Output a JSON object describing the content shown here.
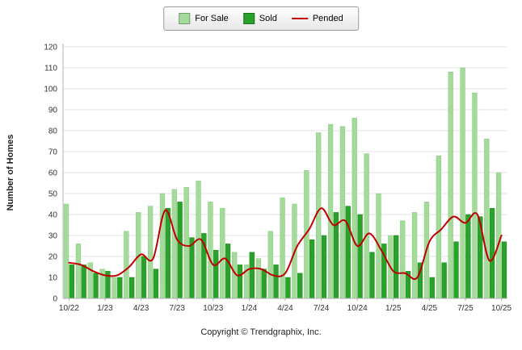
{
  "legend": {
    "items": [
      {
        "label": "For Sale",
        "color": "#a4db9b",
        "marker": "square"
      },
      {
        "label": "Sold",
        "color": "#28a228",
        "marker": "square"
      },
      {
        "label": "Pended",
        "color": "#c00000",
        "marker": "line"
      }
    ]
  },
  "footer": {
    "copyright": "Copyright © Trendgraphix, Inc."
  },
  "chart_data": {
    "type": "bar",
    "title": "",
    "xlabel": "",
    "ylabel": "Number of Homes",
    "ylim": [
      0,
      120
    ],
    "ytick_step": 10,
    "grid": true,
    "legend_position": "top-center",
    "categories": [
      "10/22",
      "11/22",
      "12/22",
      "1/23",
      "2/23",
      "3/23",
      "4/23",
      "5/23",
      "6/23",
      "7/23",
      "8/23",
      "9/23",
      "10/23",
      "11/23",
      "12/23",
      "1/24",
      "2/24",
      "3/24",
      "4/24",
      "5/24",
      "6/24",
      "7/24",
      "8/24",
      "9/24",
      "10/24",
      "11/24",
      "12/24",
      "1/25",
      "2/25",
      "3/25",
      "4/25",
      "5/25",
      "6/25",
      "7/25",
      "8/25",
      "9/25",
      "10/25"
    ],
    "x_tick_labels": [
      "10/22",
      "1/23",
      "4/23",
      "7/23",
      "10/23",
      "1/24",
      "4/24",
      "7/24",
      "10/24",
      "1/25",
      "4/25",
      "7/25",
      "10/25"
    ],
    "series": [
      {
        "name": "For Sale",
        "type": "bar",
        "color": "#a4db9b",
        "values": [
          45,
          26,
          17,
          14,
          10,
          32,
          41,
          44,
          50,
          52,
          53,
          56,
          46,
          43,
          22,
          16,
          19,
          32,
          48,
          45,
          61,
          79,
          83,
          82,
          86,
          69,
          50,
          30,
          37,
          41,
          46,
          68,
          108,
          110,
          98,
          76,
          60
        ]
      },
      {
        "name": "Sold",
        "type": "bar",
        "color": "#28a228",
        "values": [
          16,
          16,
          12,
          13,
          10,
          10,
          20,
          14,
          43,
          46,
          29,
          31,
          23,
          26,
          16,
          22,
          14,
          16,
          10,
          12,
          28,
          30,
          41,
          44,
          40,
          22,
          26,
          30,
          13,
          17,
          10,
          17,
          27,
          40,
          39,
          43,
          27
        ]
      },
      {
        "name": "Pended",
        "type": "line",
        "color": "#c00000",
        "values": [
          17,
          16,
          13,
          11,
          11,
          15,
          21,
          19,
          42,
          28,
          25,
          28,
          16,
          19,
          11,
          14,
          14,
          11,
          12,
          25,
          33,
          43,
          35,
          37,
          25,
          31,
          23,
          13,
          12,
          10,
          27,
          33,
          39,
          36,
          40,
          18,
          30
        ]
      }
    ]
  }
}
